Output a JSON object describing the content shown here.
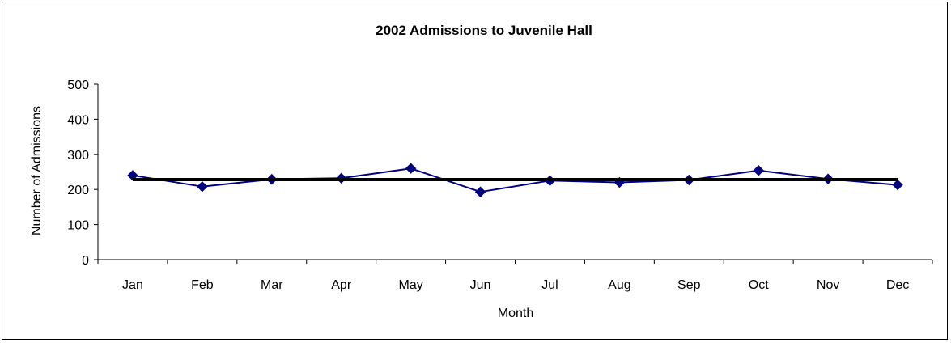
{
  "chart_data": {
    "type": "line",
    "title": "2002 Admissions to Juvenile Hall",
    "xlabel": "Month",
    "ylabel": "Number of Admissions",
    "categories": [
      "Jan",
      "Feb",
      "Mar",
      "Apr",
      "May",
      "Jun",
      "Jul",
      "Aug",
      "Sep",
      "Oct",
      "Nov",
      "Dec"
    ],
    "ylim": [
      0,
      500
    ],
    "yticks": [
      0,
      100,
      200,
      300,
      400,
      500
    ],
    "series": [
      {
        "values": [
          240,
          208,
          229,
          232,
          260,
          193,
          225,
          220,
          227,
          254,
          230,
          213
        ],
        "color": "#000080",
        "marker": "diamond"
      },
      {
        "values": [
          228,
          228,
          228,
          228,
          228,
          228,
          228,
          228,
          228,
          228,
          228,
          228
        ],
        "color": "#000000",
        "style": "thick"
      }
    ],
    "grid": false,
    "legend": "none"
  }
}
